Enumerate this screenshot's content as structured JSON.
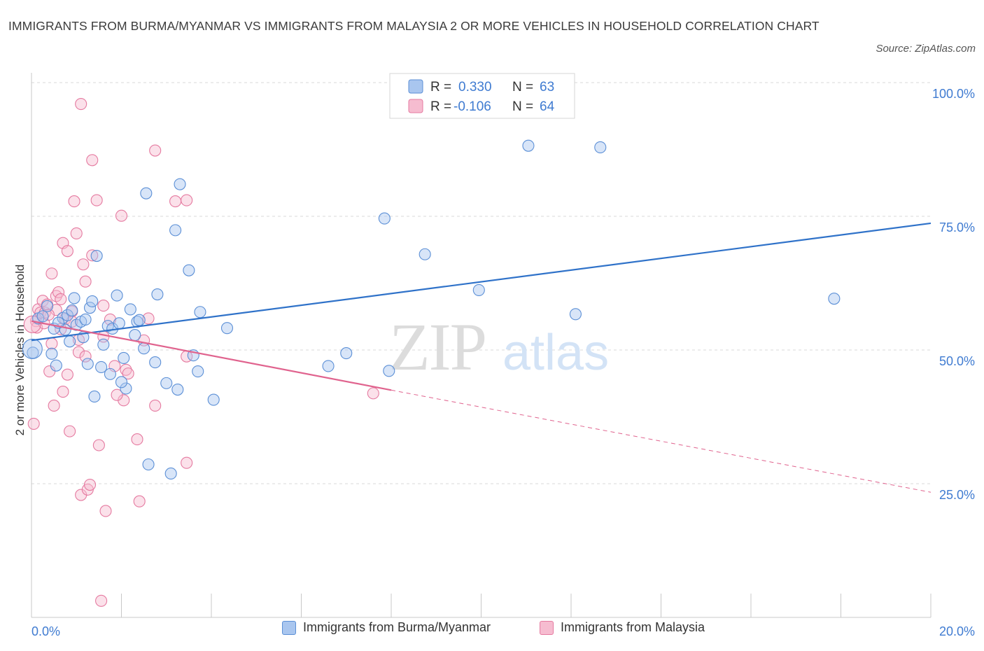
{
  "header": {
    "title": "IMMIGRANTS FROM BURMA/MYANMAR VS IMMIGRANTS FROM MALAYSIA 2 OR MORE VEHICLES IN HOUSEHOLD CORRELATION CHART",
    "source": "Source: ZipAtlas.com"
  },
  "watermark": {
    "zip": "ZIP",
    "atlas": "atlas"
  },
  "colors": {
    "blue_fill": "#a9c6ef",
    "blue_stroke": "#5b8fd6",
    "blue_line": "#2f72c9",
    "pink_fill": "#f6bcd0",
    "pink_stroke": "#e57aa0",
    "pink_line": "#e0638e",
    "tick_text": "#3f7bd1",
    "grid": "#d9d9d9"
  },
  "legend": {
    "r_label": "R =",
    "n_label": "N =",
    "rows": [
      {
        "r": "0.330",
        "n": "63"
      },
      {
        "r": "-0.106",
        "n": "64"
      }
    ]
  },
  "chart_data": {
    "type": "scatter",
    "title": "IMMIGRANTS FROM BURMA/MYANMAR VS IMMIGRANTS FROM MALAYSIA 2 OR MORE VEHICLES IN HOUSEHOLD CORRELATION CHART",
    "xlabel": "",
    "ylabel": "2 or more Vehicles in Household",
    "xlim": [
      0,
      20
    ],
    "ylim": [
      0,
      100
    ],
    "x_tick_labels": [
      "0.0%",
      "20.0%"
    ],
    "y_tick_labels": [
      "100.0%",
      "75.0%",
      "50.0%",
      "25.0%"
    ],
    "y_ticks": [
      100,
      75,
      50,
      25
    ],
    "x_ticks_minor": [
      0,
      2,
      4,
      6,
      8,
      10,
      12,
      14,
      16,
      18,
      20
    ],
    "legend_position": "bottom",
    "series": [
      {
        "name": "Immigrants from Burma/Myanmar",
        "color": "blue",
        "R": 0.33,
        "N": 63,
        "trend": {
          "x0": 0,
          "y0": 51.8,
          "x1": 20,
          "y1": 73.7
        },
        "points": [
          [
            0.03,
            49.5
          ],
          [
            0.15,
            55.9
          ],
          [
            0.25,
            56.3
          ],
          [
            0.45,
            49.3
          ],
          [
            0.5,
            54.0
          ],
          [
            0.55,
            47.1
          ],
          [
            0.7,
            56.0
          ],
          [
            0.75,
            53.8
          ],
          [
            0.8,
            56.5
          ],
          [
            0.9,
            57.4
          ],
          [
            0.95,
            59.7
          ],
          [
            1.0,
            54.7
          ],
          [
            1.1,
            55.3
          ],
          [
            1.2,
            55.7
          ],
          [
            1.25,
            47.4
          ],
          [
            1.3,
            57.9
          ],
          [
            1.35,
            59.1
          ],
          [
            1.4,
            41.3
          ],
          [
            1.45,
            67.6
          ],
          [
            1.6,
            51.0
          ],
          [
            1.7,
            54.5
          ],
          [
            1.75,
            45.5
          ],
          [
            1.8,
            54.0
          ],
          [
            1.9,
            60.2
          ],
          [
            1.95,
            55.0
          ],
          [
            2.05,
            48.5
          ],
          [
            2.1,
            42.8
          ],
          [
            2.2,
            57.6
          ],
          [
            2.3,
            52.8
          ],
          [
            2.35,
            55.3
          ],
          [
            2.4,
            55.6
          ],
          [
            2.55,
            79.3
          ],
          [
            2.6,
            28.6
          ],
          [
            2.75,
            47.7
          ],
          [
            2.8,
            60.4
          ],
          [
            3.0,
            43.8
          ],
          [
            3.1,
            26.9
          ],
          [
            3.2,
            72.4
          ],
          [
            3.25,
            42.6
          ],
          [
            3.3,
            81.0
          ],
          [
            3.5,
            64.9
          ],
          [
            3.7,
            46.0
          ],
          [
            3.75,
            57.1
          ],
          [
            4.05,
            40.7
          ],
          [
            4.35,
            54.1
          ],
          [
            6.6,
            47.0
          ],
          [
            7.0,
            49.4
          ],
          [
            7.85,
            74.6
          ],
          [
            7.95,
            46.1
          ],
          [
            8.75,
            67.9
          ],
          [
            9.95,
            61.2
          ],
          [
            11.05,
            88.2
          ],
          [
            12.1,
            56.7
          ],
          [
            12.65,
            87.9
          ],
          [
            17.85,
            59.6
          ],
          [
            0.35,
            58.2
          ],
          [
            0.6,
            55.1
          ],
          [
            1.15,
            52.4
          ],
          [
            2.0,
            44.0
          ],
          [
            2.5,
            50.3
          ],
          [
            3.6,
            49.0
          ],
          [
            1.55,
            46.8
          ],
          [
            0.85,
            51.6
          ]
        ]
      },
      {
        "name": "Immigrants from Malaysia",
        "color": "pink",
        "R": -0.106,
        "N": 64,
        "trend": {
          "x0": 0,
          "y0": 55.4,
          "x1": 8.0,
          "y1": 42.5
        },
        "trend_dashed": {
          "x0": 8.0,
          "y0": 42.5,
          "x1": 20,
          "y1": 23.4
        },
        "points": [
          [
            0.05,
            36.2
          ],
          [
            0.1,
            55.4
          ],
          [
            0.15,
            57.6
          ],
          [
            0.2,
            57.0
          ],
          [
            0.25,
            59.2
          ],
          [
            0.3,
            57.0
          ],
          [
            0.35,
            58.5
          ],
          [
            0.4,
            46.0
          ],
          [
            0.45,
            51.2
          ],
          [
            0.45,
            64.3
          ],
          [
            0.5,
            39.6
          ],
          [
            0.55,
            57.5
          ],
          [
            0.55,
            60.1
          ],
          [
            0.6,
            60.8
          ],
          [
            0.65,
            59.5
          ],
          [
            0.7,
            42.2
          ],
          [
            0.7,
            70.0
          ],
          [
            0.75,
            55.8
          ],
          [
            0.8,
            68.5
          ],
          [
            0.85,
            34.8
          ],
          [
            0.9,
            57.2
          ],
          [
            0.9,
            55.3
          ],
          [
            0.95,
            77.8
          ],
          [
            1.0,
            71.8
          ],
          [
            1.05,
            49.6
          ],
          [
            1.1,
            22.9
          ],
          [
            1.1,
            96.0
          ],
          [
            1.15,
            66.0
          ],
          [
            1.2,
            48.8
          ],
          [
            1.2,
            62.8
          ],
          [
            1.25,
            23.9
          ],
          [
            1.3,
            24.8
          ],
          [
            1.35,
            85.5
          ],
          [
            1.35,
            67.7
          ],
          [
            1.45,
            78.0
          ],
          [
            1.5,
            32.2
          ],
          [
            1.55,
            3.1
          ],
          [
            1.6,
            52.5
          ],
          [
            1.6,
            58.3
          ],
          [
            1.65,
            19.9
          ],
          [
            1.75,
            55.7
          ],
          [
            1.85,
            47.0
          ],
          [
            2.0,
            75.1
          ],
          [
            2.05,
            40.6
          ],
          [
            2.1,
            46.3
          ],
          [
            2.15,
            45.6
          ],
          [
            2.35,
            33.3
          ],
          [
            2.4,
            21.7
          ],
          [
            2.5,
            51.8
          ],
          [
            2.6,
            55.9
          ],
          [
            2.75,
            87.3
          ],
          [
            2.75,
            39.6
          ],
          [
            3.2,
            77.8
          ],
          [
            3.45,
            78.0
          ],
          [
            3.45,
            28.9
          ],
          [
            3.45,
            48.8
          ],
          [
            7.6,
            41.9
          ],
          [
            0.12,
            54.2
          ],
          [
            0.28,
            55.0
          ],
          [
            0.65,
            53.9
          ],
          [
            1.9,
            41.6
          ],
          [
            0.38,
            56.6
          ],
          [
            0.8,
            45.4
          ],
          [
            1.05,
            51.9
          ]
        ]
      }
    ]
  }
}
